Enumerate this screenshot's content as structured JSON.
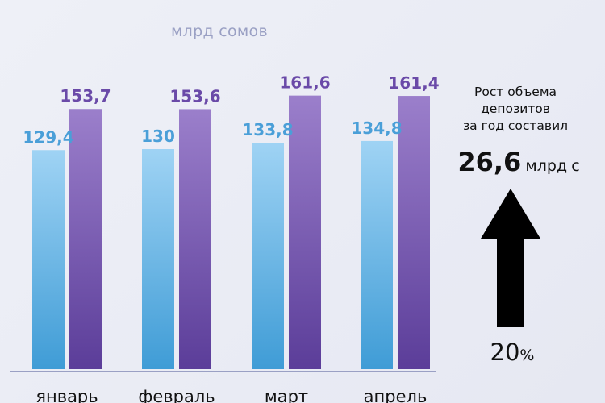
{
  "chart_data": {
    "type": "bar",
    "unit_label": "млрд сомов",
    "categories": [
      "январь",
      "февраль",
      "март",
      "апрель"
    ],
    "series": [
      {
        "values": [
          129.4,
          130,
          133.8,
          134.8
        ],
        "labels": [
          "129,4",
          "130",
          "133,8",
          "134,8"
        ],
        "color": "#7cc0ea"
      },
      {
        "values": [
          153.7,
          153.6,
          161.6,
          161.4
        ],
        "labels": [
          "153,7",
          "153,6",
          "161,6",
          "161,4"
        ],
        "color": "#8a6fc0"
      }
    ],
    "value_label_colors": [
      "#4a9fd8",
      "#6a4aa8"
    ],
    "grid": false
  },
  "annotation": {
    "text_lines": [
      "Рост объема",
      "депозитов",
      "за год составил"
    ],
    "value": "26,6",
    "value_unit": "млрд",
    "currency": "с",
    "percent_number": "20",
    "percent_sign": "%",
    "arrow_color": "#000000"
  }
}
